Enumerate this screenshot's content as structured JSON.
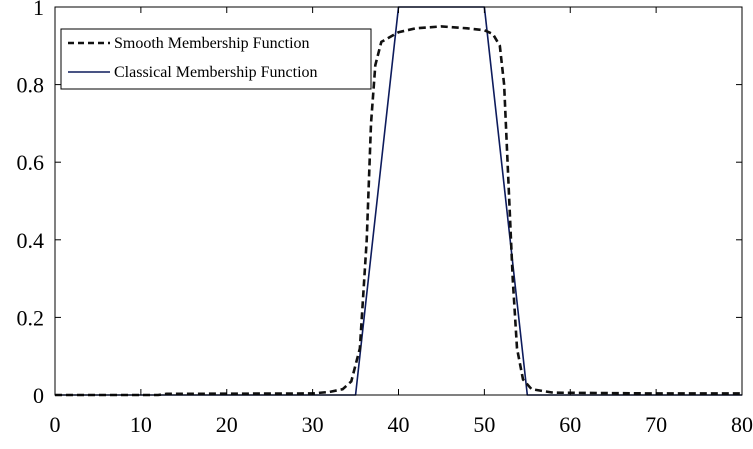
{
  "chart_data": {
    "type": "line",
    "title": "",
    "xlabel": "",
    "ylabel": "",
    "xlim": [
      0,
      80
    ],
    "ylim": [
      0,
      1
    ],
    "x_ticks": [
      "0",
      "10",
      "20",
      "30",
      "40",
      "50",
      "60",
      "70",
      "80"
    ],
    "y_ticks": [
      "0",
      "0.2",
      "0.4",
      "0.6",
      "0.8",
      "1"
    ],
    "grid": false,
    "legend_position": "top-left",
    "series": [
      {
        "name": "Smooth Membership Function",
        "style": "dashed",
        "color": "#111111",
        "points": [
          [
            0,
            0.0
          ],
          [
            12,
            0.0
          ],
          [
            13,
            0.003
          ],
          [
            30,
            0.004
          ],
          [
            32,
            0.008
          ],
          [
            33.5,
            0.015
          ],
          [
            34.5,
            0.035
          ],
          [
            35.5,
            0.12
          ],
          [
            36.3,
            0.4
          ],
          [
            36.8,
            0.7
          ],
          [
            37.3,
            0.85
          ],
          [
            38,
            0.91
          ],
          [
            40,
            0.935
          ],
          [
            42,
            0.945
          ],
          [
            45,
            0.95
          ],
          [
            48,
            0.945
          ],
          [
            50,
            0.94
          ],
          [
            51,
            0.93
          ],
          [
            51.8,
            0.9
          ],
          [
            52.3,
            0.8
          ],
          [
            52.8,
            0.55
          ],
          [
            53.3,
            0.3
          ],
          [
            53.8,
            0.12
          ],
          [
            54.5,
            0.04
          ],
          [
            55.5,
            0.015
          ],
          [
            58,
            0.006
          ],
          [
            70,
            0.004
          ],
          [
            80,
            0.004
          ]
        ]
      },
      {
        "name": "Classical Membership Function",
        "style": "solid",
        "color": "#0d1b5c",
        "points": [
          [
            0,
            0
          ],
          [
            35,
            0
          ],
          [
            40,
            1
          ],
          [
            50,
            1
          ],
          [
            55,
            0
          ],
          [
            80,
            0
          ]
        ]
      }
    ]
  }
}
